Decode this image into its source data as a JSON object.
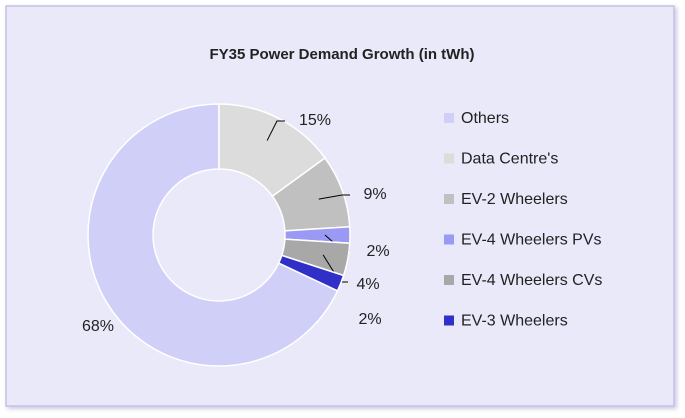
{
  "chart_data": {
    "type": "donut",
    "title": "FY35 Power Demand Growth (in tWh)",
    "categories": [
      "Others",
      "Data Centre's",
      "EV-2 Wheelers",
      "EV-4 Wheelers PVs",
      "EV-4 Wheelers CVs",
      "EV-3 Wheelers"
    ],
    "values": [
      68,
      15,
      9,
      2,
      4,
      2
    ],
    "value_labels": [
      "68%",
      "15%",
      "9%",
      "2%",
      "4%",
      "2%"
    ],
    "colors": [
      "#cfcff8",
      "#dcdcdc",
      "#c0c0c0",
      "#9a9af5",
      "#a8a8a8",
      "#3030c8"
    ],
    "start_angle": 115.2,
    "legend": "right"
  }
}
